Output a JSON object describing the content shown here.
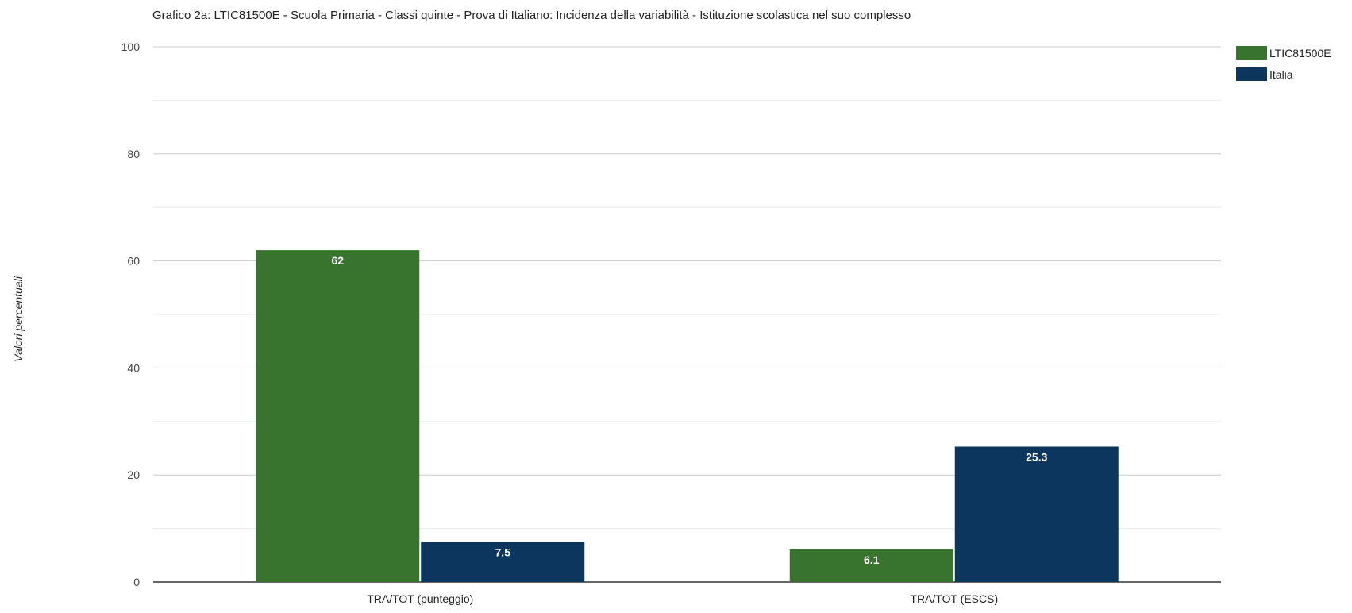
{
  "chart_data": {
    "type": "bar",
    "title": "Grafico 2a: LTIC81500E - Scuola Primaria - Classi quinte - Prova di Italiano: Incidenza della variabilità - Istituzione scolastica nel suo complesso",
    "xlabel": "",
    "ylabel": "Valori percentuali",
    "categories": [
      "TRA/TOT (punteggio)",
      "TRA/TOT (ESCS)"
    ],
    "series": [
      {
        "name": "LTIC81500E",
        "values": [
          62,
          6.1
        ],
        "labels": [
          "62",
          "6.1"
        ],
        "color": "#38742e"
      },
      {
        "name": "Italia",
        "values": [
          7.5,
          25.3
        ],
        "labels": [
          "7.5",
          "25.3"
        ],
        "color": "#0c365e"
      }
    ],
    "ylim": [
      0,
      100
    ],
    "major_ticks": [
      0,
      20,
      40,
      60,
      80,
      100
    ],
    "minor_gridlines": [
      10,
      30,
      50,
      70,
      90
    ],
    "grid": true,
    "legend_position": "top-right"
  }
}
